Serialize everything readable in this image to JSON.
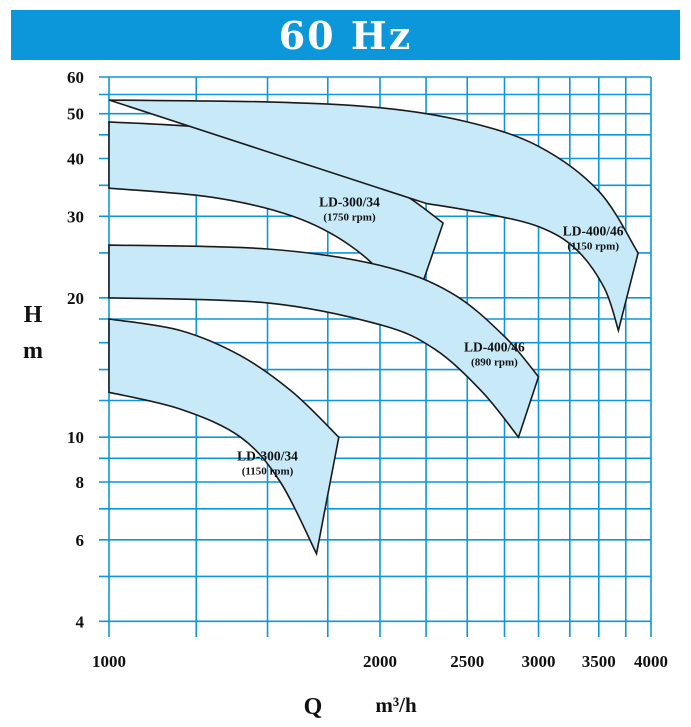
{
  "banner": {
    "title": "60 Hz",
    "color": "#0c97da"
  },
  "chart_data": {
    "type": "area",
    "xscale": "log",
    "yscale": "log",
    "xlim": [
      1000,
      4000
    ],
    "ylim": [
      3.7,
      60
    ],
    "xlabel": "Q",
    "xunit": "m³/h",
    "ylabel_top": "H",
    "ylabel_bottom": "m",
    "grid": true,
    "grid_color": "#0c97da",
    "fill_color": "#c8e9f8",
    "x_grid": [
      1000,
      1250,
      1500,
      1750,
      2000,
      2250,
      2500,
      2750,
      3000,
      3250,
      3500,
      3750,
      4000
    ],
    "y_grid": [
      4,
      5,
      6,
      7,
      8,
      9,
      10,
      12,
      14,
      16,
      18,
      20,
      25,
      30,
      35,
      40,
      45,
      50,
      55,
      60
    ],
    "x_ticks": [
      "1000",
      "2000",
      "2500",
      "3000",
      "3500",
      "4000"
    ],
    "y_ticks": [
      "4",
      "6",
      "8",
      "10",
      "20",
      "30",
      "40",
      "50",
      "60"
    ],
    "series": [
      {
        "name": "LD-300/34",
        "speed": "(1750 rpm)",
        "max_curve": [
          [
            1000,
            48
          ],
          [
            1300,
            46.5
          ],
          [
            1600,
            43
          ],
          [
            1900,
            38
          ],
          [
            2150,
            33
          ],
          [
            2350,
            29
          ]
        ],
        "min_curve": [
          [
            1000,
            34.5
          ],
          [
            1300,
            33
          ],
          [
            1600,
            30
          ],
          [
            1850,
            26
          ],
          [
            2050,
            21.5
          ],
          [
            2150,
            17.5
          ]
        ]
      },
      {
        "name": "LD-400/46",
        "speed": "(1150 rpm)",
        "max_curve": [
          [
            1000,
            53.5
          ],
          [
            1500,
            53
          ],
          [
            2000,
            51.5
          ],
          [
            2500,
            48
          ],
          [
            3000,
            42.5
          ],
          [
            3500,
            34
          ],
          [
            3870,
            25
          ]
        ],
        "min_curve": [
          [
            2250,
            32
          ],
          [
            2600,
            30.5
          ],
          [
            3000,
            28.5
          ],
          [
            3300,
            25.5
          ],
          [
            3550,
            21
          ],
          [
            3680,
            17
          ]
        ]
      },
      {
        "name": "LD-400/46",
        "speed": "(890 rpm)",
        "max_curve": [
          [
            1000,
            26
          ],
          [
            1500,
            25.5
          ],
          [
            2000,
            23.5
          ],
          [
            2400,
            20.5
          ],
          [
            2750,
            16.5
          ],
          [
            3000,
            13.5
          ]
        ],
        "min_curve": [
          [
            1000,
            20
          ],
          [
            1500,
            19.5
          ],
          [
            2000,
            17.5
          ],
          [
            2300,
            15.5
          ],
          [
            2600,
            12.5
          ],
          [
            2850,
            10
          ]
        ]
      },
      {
        "name": "LD-300/34",
        "speed": "(1150 rpm)",
        "max_curve": [
          [
            1000,
            18
          ],
          [
            1200,
            17
          ],
          [
            1400,
            15
          ],
          [
            1600,
            12.5
          ],
          [
            1800,
            10
          ]
        ],
        "min_curve": [
          [
            1000,
            12.5
          ],
          [
            1200,
            11.5
          ],
          [
            1400,
            10
          ],
          [
            1550,
            8
          ],
          [
            1700,
            5.6
          ]
        ]
      }
    ]
  }
}
